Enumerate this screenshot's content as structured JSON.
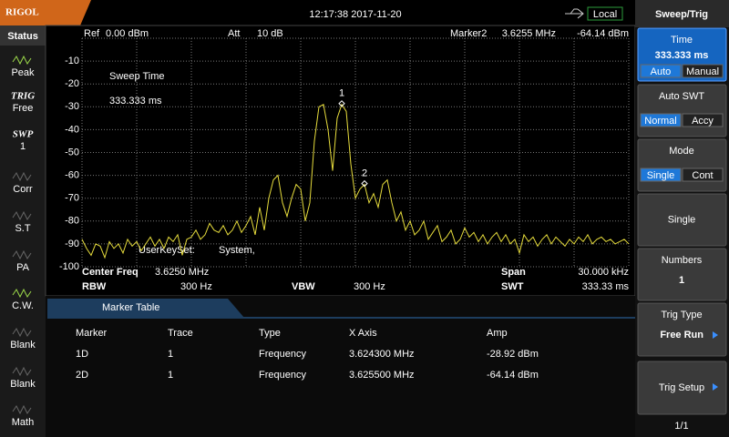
{
  "header": {
    "logo": "RIGOL",
    "time": "12:17:38 2017-11-20",
    "mode": "Local"
  },
  "status": {
    "title": "Status",
    "items": [
      {
        "icon": null,
        "label": "Peak",
        "active": true
      },
      {
        "icon": "TRIG",
        "label": "Free",
        "active": true
      },
      {
        "icon": "SWP",
        "label": "1",
        "active": true
      },
      {
        "icon": null,
        "label": "Corr",
        "active": false
      },
      {
        "icon": null,
        "label": "S.T",
        "active": false
      },
      {
        "icon": null,
        "label": "PA",
        "active": false
      },
      {
        "icon": null,
        "label": "C.W.",
        "active": true
      },
      {
        "icon": null,
        "label": "Blank",
        "active": false
      },
      {
        "icon": null,
        "label": "Blank",
        "active": false
      },
      {
        "icon": null,
        "label": "Math",
        "active": false
      }
    ]
  },
  "plot": {
    "ref": "Ref",
    "ref_value": "0.00 dBm",
    "att": "Att",
    "att_value": "10 dB",
    "marker": "Marker2",
    "marker_freq": "3.6255 MHz",
    "marker_amp": "-64.14 dBm",
    "annotation": "Sweep Time",
    "annotation_value": "333.333 ms",
    "userkey": "UserKeySet:",
    "userkey_value": "System,",
    "ylim": [
      -100,
      0
    ],
    "yticks": [
      -10,
      -20,
      -30,
      -40,
      -50,
      -60,
      -70,
      -80,
      -90,
      -100
    ],
    "color": "#e6dc3c",
    "markers": [
      {
        "label": "1"
      },
      {
        "label": "2"
      }
    ],
    "trace": {
      "values": [
        -88,
        -92,
        -95,
        -90,
        -91,
        -96,
        -89,
        -92,
        -90,
        -94,
        -88,
        -91,
        -89,
        -93,
        -90,
        -87,
        -91,
        -88,
        -92,
        -87,
        -89,
        -86,
        -95,
        -88,
        -87,
        -84,
        -88,
        -86,
        -81,
        -84,
        -85,
        -82,
        -86,
        -84,
        -80,
        -85,
        -82,
        -78,
        -86,
        -74,
        -84,
        -70,
        -62,
        -60,
        -72,
        -78,
        -70,
        -64,
        -66,
        -80,
        -72,
        -45,
        -30,
        -29,
        -40,
        -58,
        -35,
        -29,
        -32,
        -55,
        -70,
        -66,
        -64,
        -72,
        -68,
        -74,
        -64,
        -62,
        -72,
        -80,
        -76,
        -84,
        -80,
        -86,
        -84,
        -80,
        -88,
        -85,
        -82,
        -89,
        -87,
        -84,
        -90,
        -88,
        -83,
        -87,
        -85,
        -89,
        -86,
        -90,
        -87,
        -85,
        -89,
        -86,
        -90,
        -88,
        -94,
        -86,
        -89,
        -87,
        -91,
        -88,
        -86,
        -90,
        -87,
        -89,
        -91,
        -88,
        -90,
        -87,
        -89,
        -86,
        -90,
        -88,
        -87,
        -89,
        -88,
        -90,
        -89,
        -88,
        -90
      ]
    }
  },
  "footer": {
    "center": "Center Freq",
    "center_value": "3.6250 MHz",
    "span": "Span",
    "span_value": "30.000 kHz",
    "rbw": "RBW",
    "rbw_value": "300 Hz",
    "vbw": "VBW",
    "vbw_value": "300 Hz",
    "swt": "SWT",
    "swt_value": "333.33 ms"
  },
  "marker_table": {
    "title": "Marker Table",
    "columns": [
      "Marker",
      "Trace",
      "Type",
      "X Axis",
      "Amp"
    ],
    "rows": [
      [
        "1D",
        "1",
        "Frequency",
        "3.624300 MHz",
        "-28.92 dBm"
      ],
      [
        "2D",
        "1",
        "Frequency",
        "3.625500 MHz",
        "-64.14 dBm"
      ]
    ]
  },
  "softkeys": {
    "title": "Sweep/Trig",
    "page": "1/1",
    "keys": [
      {
        "label": "Time",
        "value": "333.333 ms",
        "options": [
          "Auto",
          "Manual"
        ],
        "selected": 0,
        "highlight": true
      },
      {
        "label": "Auto SWT",
        "options": [
          "Normal",
          "Accy"
        ],
        "selected": 0
      },
      {
        "label": "Mode",
        "options": [
          "Single",
          "Cont"
        ],
        "selected": 0
      },
      {
        "label": "Single"
      },
      {
        "label": "Numbers",
        "value": "1"
      },
      {
        "label": "Trig Type",
        "value": "Free Run",
        "arrow": true
      },
      {
        "label": "Trig Setup",
        "arrow": true,
        "disabled": true
      }
    ]
  }
}
